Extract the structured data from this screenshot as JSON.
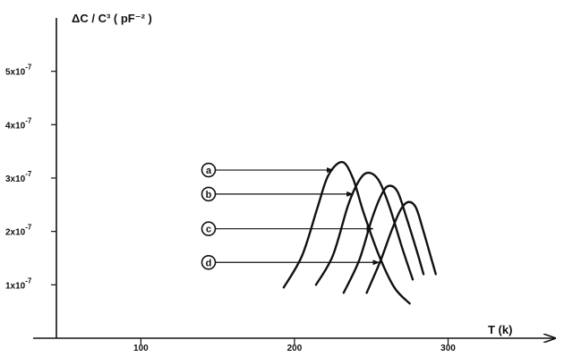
{
  "chart_data": {
    "type": "line",
    "y_title": "ΔC / C³ ( pF⁻² )",
    "x_title": "T (k)",
    "x_ticks": [
      {
        "value": 100,
        "label": "100"
      },
      {
        "value": 200,
        "label": "200"
      },
      {
        "value": 300,
        "label": "300"
      }
    ],
    "y_ticks": [
      {
        "value": 1e-07,
        "base": "1x10",
        "exp": "-7"
      },
      {
        "value": 2e-07,
        "base": "2x10",
        "exp": "-7"
      },
      {
        "value": 3e-07,
        "base": "3x10",
        "exp": "-7"
      },
      {
        "value": 4e-07,
        "base": "4x10",
        "exp": "-7"
      },
      {
        "value": 5e-07,
        "base": "5x10",
        "exp": "-7"
      }
    ],
    "xlim": [
      45,
      330
    ],
    "ylim": [
      0,
      6e-07
    ],
    "grid": false,
    "legend": "left markers with arrows pointing to curve peaks",
    "series": [
      {
        "label": "a",
        "marker_y": 3.15e-07,
        "arrow_to_x": 225,
        "points": [
          [
            193,
            9.5e-08
          ],
          [
            205,
            1.55e-07
          ],
          [
            215,
            2.45e-07
          ],
          [
            222,
            3.05e-07
          ],
          [
            231,
            3.3e-07
          ],
          [
            238,
            3e-07
          ],
          [
            245,
            2.35e-07
          ],
          [
            255,
            1.55e-07
          ],
          [
            265,
            9.5e-08
          ],
          [
            275,
            6.5e-08
          ]
        ]
      },
      {
        "label": "b",
        "marker_y": 2.7e-07,
        "arrow_to_x": 238,
        "points": [
          [
            214,
            1e-07
          ],
          [
            225,
            1.55e-07
          ],
          [
            235,
            2.5e-07
          ],
          [
            242,
            2.95e-07
          ],
          [
            248,
            3.1e-07
          ],
          [
            255,
            2.95e-07
          ],
          [
            262,
            2.45e-07
          ],
          [
            270,
            1.7e-07
          ],
          [
            277,
            1.1e-07
          ]
        ]
      },
      {
        "label": "c",
        "marker_y": 2.05e-07,
        "arrow_to_x": 251,
        "points": [
          [
            232,
            8.5e-08
          ],
          [
            242,
            1.45e-07
          ],
          [
            250,
            2.2e-07
          ],
          [
            256,
            2.65e-07
          ],
          [
            261,
            2.85e-07
          ],
          [
            267,
            2.75e-07
          ],
          [
            273,
            2.25e-07
          ],
          [
            280,
            1.6e-07
          ],
          [
            284,
            1.2e-07
          ]
        ]
      },
      {
        "label": "d",
        "marker_y": 1.42e-07,
        "arrow_to_x": 255,
        "points": [
          [
            247,
            8.5e-08
          ],
          [
            256,
            1.45e-07
          ],
          [
            263,
            2e-07
          ],
          [
            269,
            2.4e-07
          ],
          [
            274,
            2.55e-07
          ],
          [
            279,
            2.45e-07
          ],
          [
            284,
            2e-07
          ],
          [
            289,
            1.5e-07
          ],
          [
            292,
            1.2e-07
          ]
        ]
      }
    ]
  }
}
